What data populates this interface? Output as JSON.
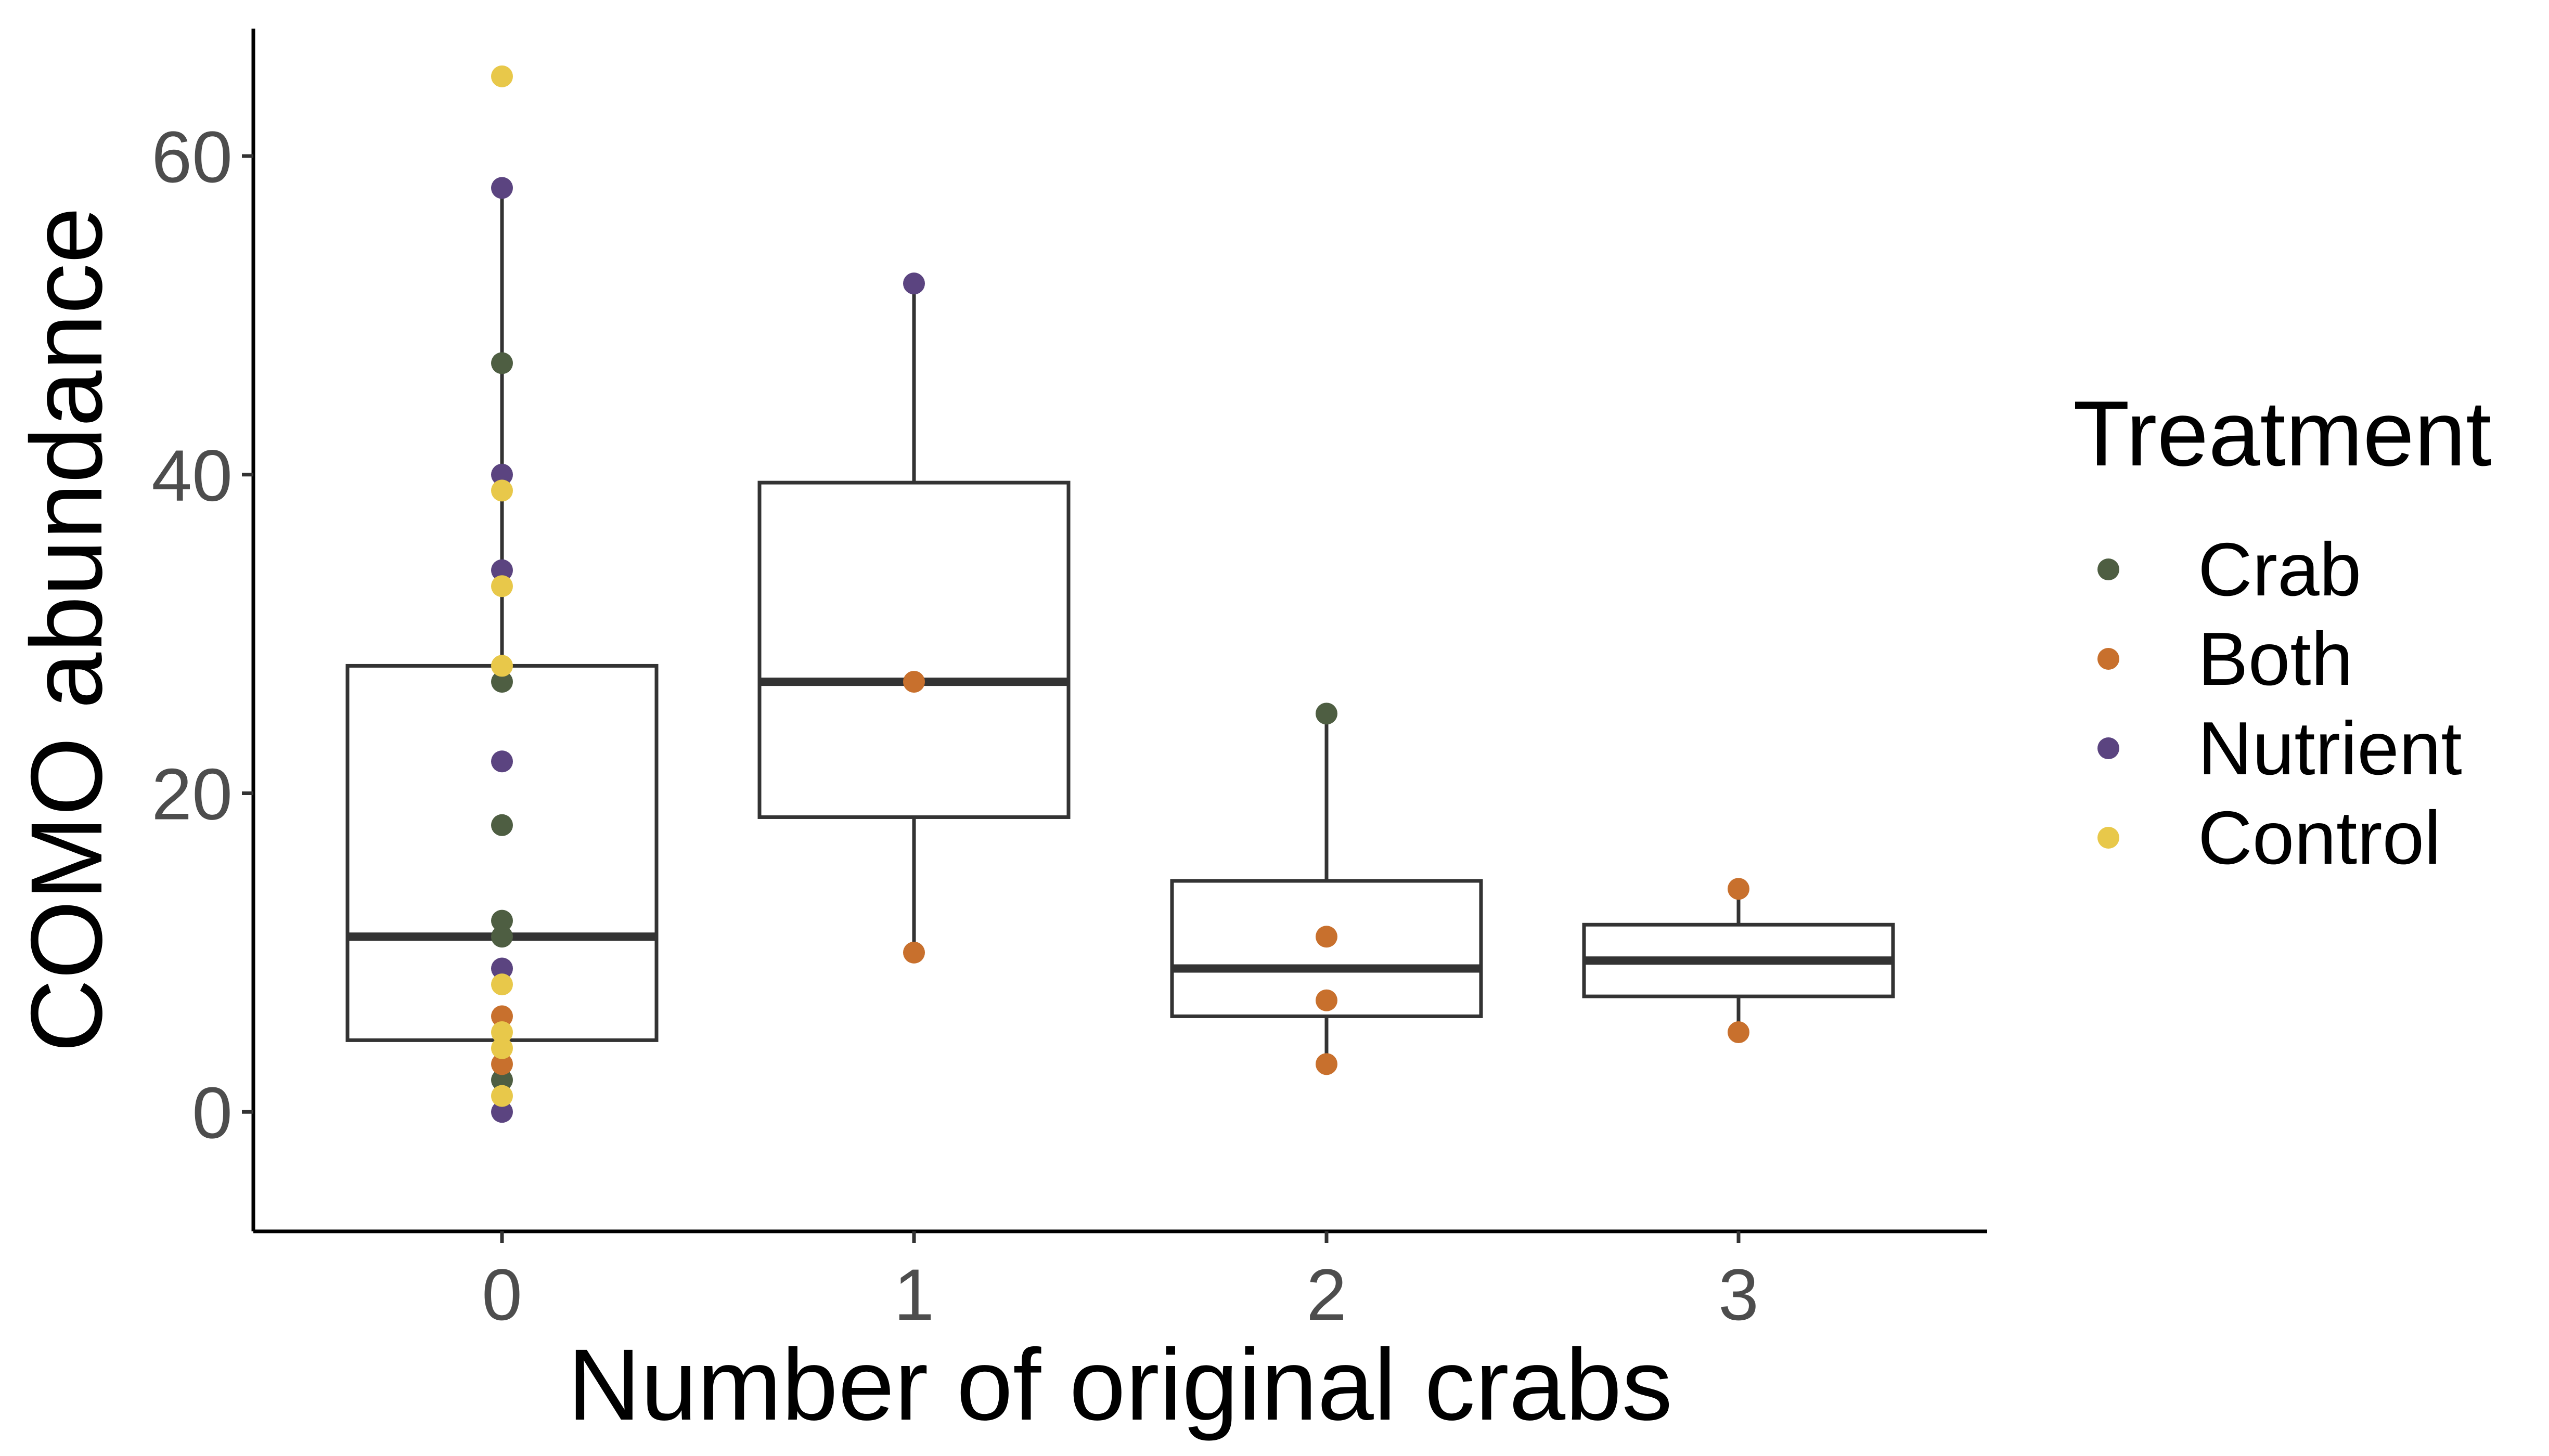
{
  "chart_data": {
    "type": "box_with_points",
    "xlabel": "Number of original crabs",
    "ylabel": "COMO abundance",
    "categories": [
      "0",
      "1",
      "2",
      "3"
    ],
    "ylim": [
      -7.5,
      68
    ],
    "yticks": [
      0,
      20,
      40,
      60
    ],
    "grid": false,
    "legend": {
      "title": "Treatment",
      "placement": "right",
      "entries": [
        {
          "name": "Crab",
          "color": "#4e5e42"
        },
        {
          "name": "Both",
          "color": "#c8702d"
        },
        {
          "name": "Nutrient",
          "color": "#5b4480"
        },
        {
          "name": "Control",
          "color": "#e8c84a"
        }
      ]
    },
    "boxes": [
      {
        "category": "0",
        "whisker_low": 0,
        "q1": 4.5,
        "median": 11,
        "q3": 28,
        "whisker_high": 58
      },
      {
        "category": "1",
        "whisker_low": 10,
        "q1": 18.5,
        "median": 27,
        "q3": 39.5,
        "whisker_high": 52
      },
      {
        "category": "2",
        "whisker_low": 3,
        "q1": 6,
        "median": 9,
        "q3": 14.5,
        "whisker_high": 25
      },
      {
        "category": "3",
        "whisker_low": 5,
        "q1": 7.25,
        "median": 9.5,
        "q3": 11.75,
        "whisker_high": 14
      }
    ],
    "series": [
      {
        "name": "Crab",
        "points": [
          {
            "x": "0",
            "y": 47
          },
          {
            "x": "0",
            "y": 27
          },
          {
            "x": "0",
            "y": 18
          },
          {
            "x": "0",
            "y": 12
          },
          {
            "x": "0",
            "y": 11
          },
          {
            "x": "0",
            "y": 2
          },
          {
            "x": "2",
            "y": 25
          }
        ]
      },
      {
        "name": "Both",
        "points": [
          {
            "x": "0",
            "y": 6
          },
          {
            "x": "0",
            "y": 3
          },
          {
            "x": "1",
            "y": 27
          },
          {
            "x": "1",
            "y": 10
          },
          {
            "x": "2",
            "y": 11
          },
          {
            "x": "2",
            "y": 7
          },
          {
            "x": "2",
            "y": 3
          },
          {
            "x": "3",
            "y": 14
          },
          {
            "x": "3",
            "y": 5
          }
        ]
      },
      {
        "name": "Nutrient",
        "points": [
          {
            "x": "0",
            "y": 58
          },
          {
            "x": "0",
            "y": 40
          },
          {
            "x": "0",
            "y": 34
          },
          {
            "x": "0",
            "y": 22
          },
          {
            "x": "0",
            "y": 9
          },
          {
            "x": "0",
            "y": 0
          },
          {
            "x": "1",
            "y": 52
          }
        ]
      },
      {
        "name": "Control",
        "points": [
          {
            "x": "0",
            "y": 65
          },
          {
            "x": "0",
            "y": 39
          },
          {
            "x": "0",
            "y": 33
          },
          {
            "x": "0",
            "y": 28
          },
          {
            "x": "0",
            "y": 8
          },
          {
            "x": "0",
            "y": 5
          },
          {
            "x": "0",
            "y": 4
          },
          {
            "x": "0",
            "y": 1
          }
        ]
      }
    ]
  }
}
